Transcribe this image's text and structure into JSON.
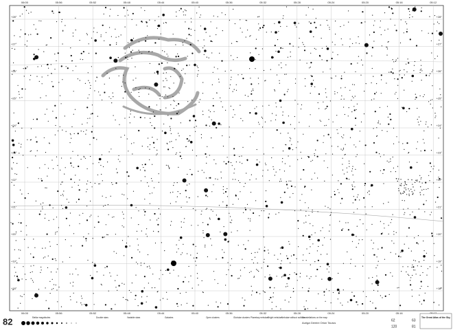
{
  "page_number": "82",
  "ra_labels": [
    "06:00",
    "05:56",
    "05:52",
    "05:48",
    "05:44",
    "05:40",
    "05:36",
    "05:32",
    "05:28",
    "05:24",
    "05:20",
    "05:16",
    "05:12"
  ],
  "dec_labels": [
    "+28°",
    "+27°",
    "+26°",
    "+25°",
    "+24°",
    "+23°",
    "+22°",
    "+21°",
    "+20°",
    "+19°",
    "+18°"
  ],
  "legend": [
    "Stellar magnitudes",
    "Double stars",
    "Variable stars",
    "Galaxies",
    "Open clusters",
    "Globular clusters",
    "Planetary nebulae",
    "Bright nebulae",
    "Nebulae without outlines"
  ],
  "constellations_heading": "Constellations on the map",
  "constellations": "Auriga Gemini Orion Taurus",
  "atlas_title": "The Great Atlas of the Sky",
  "adjacent_pages": [
    "62",
    "63",
    "120",
    "81"
  ]
}
